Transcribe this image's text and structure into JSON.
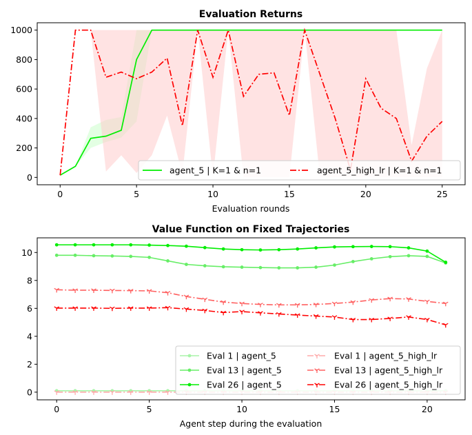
{
  "chart_data": [
    {
      "type": "line",
      "title": "Evaluation Returns",
      "xlabel": "Evaluation rounds",
      "ylabel": "",
      "xlim": [
        -1.5,
        26.5
      ],
      "ylim": [
        -50,
        1050
      ],
      "xticks": [
        0,
        5,
        10,
        15,
        20,
        25
      ],
      "yticks": [
        0,
        200,
        400,
        600,
        800,
        1000
      ],
      "legend_position": "lower-right",
      "legend_ncol": 2,
      "series": [
        {
          "name": "agent_5 | K=1 & n=1",
          "color": "#00ee00",
          "dash": "solid",
          "x": [
            0,
            1,
            2,
            3,
            4,
            5,
            6,
            7,
            8,
            9,
            10,
            11,
            12,
            13,
            14,
            15,
            16,
            17,
            18,
            19,
            20,
            21,
            22,
            23,
            24,
            25
          ],
          "values": [
            15,
            75,
            265,
            280,
            320,
            800,
            1000,
            1000,
            1000,
            1000,
            1000,
            1000,
            1000,
            1000,
            1000,
            1000,
            1000,
            1000,
            1000,
            1000,
            1000,
            1000,
            1000,
            1000,
            1000,
            1000
          ],
          "band_lower": [
            15,
            75,
            200,
            240,
            270,
            380,
            1000,
            1000,
            1000,
            1000,
            1000,
            1000,
            1000,
            1000,
            1000,
            1000,
            1000,
            1000,
            1000,
            1000,
            1000,
            1000,
            1000,
            1000,
            1000,
            1000
          ],
          "band_upper": [
            15,
            75,
            340,
            390,
            410,
            1000,
            1000,
            1000,
            1000,
            1000,
            1000,
            1000,
            1000,
            1000,
            1000,
            1000,
            1000,
            1000,
            1000,
            1000,
            1000,
            1000,
            1000,
            1000,
            1000,
            1000
          ],
          "band_color": "#ccffcc"
        },
        {
          "name": "agent_5_high_lr | K=1 & n=1",
          "color": "#ff0000",
          "dash": "dashdot",
          "x": [
            0,
            1,
            2,
            3,
            4,
            5,
            6,
            7,
            8,
            9,
            10,
            11,
            12,
            13,
            14,
            15,
            16,
            17,
            18,
            19,
            20,
            21,
            22,
            23,
            24,
            25
          ],
          "values": [
            15,
            1000,
            1000,
            680,
            715,
            670,
            715,
            810,
            350,
            1000,
            680,
            1000,
            550,
            700,
            710,
            420,
            1000,
            700,
            400,
            50,
            670,
            470,
            400,
            110,
            280,
            380
          ],
          "band_lower": [
            15,
            1000,
            1000,
            40,
            150,
            30,
            150,
            420,
            20,
            1000,
            0,
            1000,
            0,
            0,
            0,
            0,
            1000,
            0,
            0,
            0,
            0,
            0,
            0,
            0,
            0,
            0
          ],
          "band_upper": [
            15,
            1000,
            1000,
            1000,
            1000,
            1000,
            1000,
            1000,
            1000,
            1000,
            1000,
            1000,
            1000,
            1000,
            1000,
            1000,
            1000,
            1000,
            1000,
            1000,
            1000,
            1000,
            1000,
            220,
            740,
            1000
          ],
          "band_color": "#ffcccc"
        }
      ]
    },
    {
      "type": "line",
      "title": "Value Function on Fixed Trajectories",
      "xlabel": "Agent step during the evaluation",
      "ylabel": "",
      "xlim": [
        -1.05,
        22.05
      ],
      "ylim": [
        -0.55,
        11.05
      ],
      "xticks": [
        0,
        5,
        10,
        15,
        20
      ],
      "yticks": [
        0,
        2,
        4,
        6,
        8,
        10
      ],
      "legend_position": "lower-right",
      "legend_ncol": 2,
      "series": [
        {
          "name": "Eval 1 | agent_5",
          "color": "#a8f4a8",
          "marker": "dot",
          "dash": "solid",
          "values": [
            0.1,
            0.1,
            0.1,
            0.1,
            0.1,
            0.1,
            0.1,
            0.1,
            0.1,
            0.1,
            0.1,
            0.1,
            0.1,
            0.1,
            0.1,
            0.1,
            0.1,
            0.1,
            0.1,
            0.1,
            0.1,
            0.1
          ]
        },
        {
          "name": "Eval 13 | agent_5",
          "color": "#66ee66",
          "marker": "dot",
          "dash": "solid",
          "values": [
            9.8,
            9.8,
            9.77,
            9.75,
            9.72,
            9.65,
            9.4,
            9.15,
            9.05,
            8.98,
            8.95,
            8.92,
            8.9,
            8.9,
            8.95,
            9.1,
            9.35,
            9.55,
            9.7,
            9.77,
            9.72,
            9.25
          ]
        },
        {
          "name": "Eval 26 | agent_5",
          "color": "#00ee00",
          "marker": "dot",
          "dash": "solid",
          "values": [
            10.55,
            10.55,
            10.55,
            10.55,
            10.55,
            10.53,
            10.5,
            10.45,
            10.35,
            10.25,
            10.2,
            10.18,
            10.2,
            10.25,
            10.33,
            10.4,
            10.42,
            10.43,
            10.42,
            10.33,
            10.1,
            9.3
          ]
        },
        {
          "name": "Eval 1 | agent_5_high_lr",
          "color": "#ffaaaa",
          "marker": "tri",
          "dash": "dashdot",
          "values": [
            0,
            0,
            0,
            0,
            0,
            0,
            0,
            0,
            0,
            0,
            0,
            0,
            0,
            0,
            0,
            0,
            0,
            0,
            0,
            0,
            0,
            0
          ]
        },
        {
          "name": "Eval 13 | agent_5_high_lr",
          "color": "#ff6060",
          "marker": "tri",
          "dash": "dashdot",
          "values": [
            7.33,
            7.3,
            7.3,
            7.28,
            7.27,
            7.25,
            7.12,
            6.85,
            6.65,
            6.45,
            6.35,
            6.28,
            6.25,
            6.25,
            6.28,
            6.35,
            6.45,
            6.6,
            6.7,
            6.67,
            6.5,
            6.35
          ]
        },
        {
          "name": "Eval 26 | agent_5_high_lr",
          "color": "#ff0000",
          "marker": "tri",
          "dash": "dashdot",
          "values": [
            6.02,
            6.02,
            6.02,
            6.0,
            6.02,
            6.02,
            6.05,
            5.95,
            5.85,
            5.7,
            5.77,
            5.68,
            5.6,
            5.52,
            5.45,
            5.38,
            5.2,
            5.2,
            5.28,
            5.38,
            5.2,
            4.82
          ]
        }
      ]
    }
  ]
}
